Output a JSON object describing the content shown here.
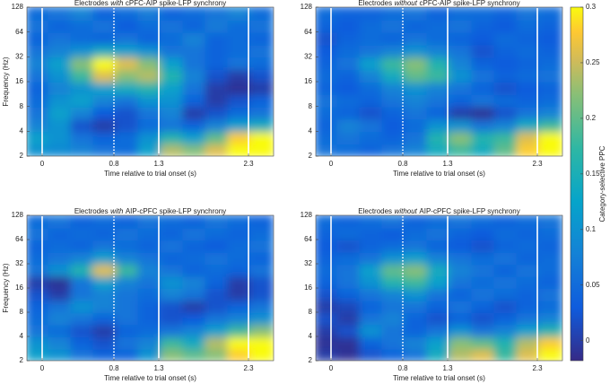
{
  "chart_data": [
    {
      "type": "heatmap",
      "title": {
        "prefix": "Electrodes",
        "emphasis": "with",
        "suffix": "cPFC-AIP spike-LFP synchrony"
      },
      "xlabel": "Time relative to trial onset (s)",
      "ylabel": "Frequency (Hz)",
      "xlim": [
        -0.17,
        2.58
      ],
      "ylim": [
        2,
        128
      ],
      "log_y": true,
      "xticks": [
        0,
        0.8,
        1.3,
        2.3
      ],
      "yticks": [
        2,
        4,
        8,
        16,
        32,
        64,
        128
      ],
      "markers": [
        {
          "x": 0,
          "style": "solid"
        },
        {
          "x": 0.8,
          "style": "dotted"
        },
        {
          "x": 1.3,
          "style": "solid"
        },
        {
          "x": 2.3,
          "style": "solid"
        }
      ],
      "x": [
        -0.05,
        0.2,
        0.45,
        0.7,
        0.95,
        1.2,
        1.45,
        1.7,
        1.95,
        2.2,
        2.45
      ],
      "y": [
        2.38,
        3.36,
        4.76,
        6.73,
        9.51,
        13.45,
        19.03,
        26.9,
        38.05,
        53.8,
        76.1,
        107.6
      ],
      "values": [
        [
          0.1,
          0.09,
          0.08,
          0.06,
          0.05,
          0.12,
          0.24,
          0.22,
          0.26,
          0.3,
          0.3
        ],
        [
          0.12,
          0.1,
          0.06,
          0.04,
          0.05,
          0.1,
          0.16,
          0.12,
          0.2,
          0.28,
          0.3
        ],
        [
          0.08,
          0.1,
          0.02,
          0.0,
          0.02,
          0.05,
          0.06,
          0.04,
          0.08,
          0.12,
          0.14
        ],
        [
          0.06,
          0.12,
          0.08,
          0.03,
          0.02,
          0.06,
          0.08,
          0.0,
          0.02,
          0.05,
          0.06
        ],
        [
          0.05,
          0.1,
          0.12,
          0.08,
          0.06,
          0.1,
          0.1,
          0.04,
          0.0,
          0.02,
          0.04
        ],
        [
          0.04,
          0.08,
          0.1,
          0.12,
          0.14,
          0.16,
          0.12,
          0.06,
          0.0,
          -0.01,
          0.0
        ],
        [
          0.06,
          0.1,
          0.18,
          0.26,
          0.22,
          0.24,
          0.16,
          0.08,
          0.02,
          0.0,
          0.02
        ],
        [
          0.08,
          0.12,
          0.22,
          0.3,
          0.26,
          0.22,
          0.12,
          0.06,
          0.04,
          0.06,
          0.05
        ],
        [
          0.06,
          0.08,
          0.1,
          0.14,
          0.12,
          0.1,
          0.06,
          0.06,
          0.04,
          0.05,
          0.06
        ],
        [
          0.04,
          0.06,
          0.05,
          0.04,
          0.06,
          0.04,
          0.05,
          0.08,
          0.04,
          0.05,
          0.04
        ],
        [
          0.06,
          0.04,
          0.05,
          0.06,
          0.03,
          0.05,
          0.06,
          0.04,
          0.07,
          0.05,
          0.06
        ],
        [
          0.05,
          0.06,
          0.08,
          0.04,
          0.05,
          0.07,
          0.04,
          0.05,
          0.06,
          0.08,
          0.05
        ]
      ]
    },
    {
      "type": "heatmap",
      "title": {
        "prefix": "Electrodes",
        "emphasis": "without",
        "suffix": "cPFC-AIP spike-LFP synchrony"
      },
      "xlabel": "Time relative to trial onset (s)",
      "xlim": [
        -0.17,
        2.58
      ],
      "ylim": [
        2,
        128
      ],
      "log_y": true,
      "xticks": [
        0,
        0.8,
        1.3,
        2.3
      ],
      "yticks": [
        2,
        4,
        8,
        16,
        32,
        64,
        128
      ],
      "markers": [
        {
          "x": 0,
          "style": "solid"
        },
        {
          "x": 0.8,
          "style": "dotted"
        },
        {
          "x": 1.3,
          "style": "solid"
        },
        {
          "x": 2.3,
          "style": "solid"
        }
      ],
      "x": [
        -0.05,
        0.2,
        0.45,
        0.7,
        0.95,
        1.2,
        1.45,
        1.7,
        1.95,
        2.2,
        2.45
      ],
      "y": [
        2.38,
        3.36,
        4.76,
        6.73,
        9.51,
        13.45,
        19.03,
        26.9,
        38.05,
        53.8,
        76.1,
        107.6
      ],
      "values": [
        [
          0.06,
          0.05,
          0.04,
          0.06,
          0.08,
          0.14,
          0.18,
          0.14,
          0.2,
          0.28,
          0.3
        ],
        [
          0.05,
          0.06,
          0.05,
          0.04,
          0.06,
          0.16,
          0.22,
          0.16,
          0.18,
          0.26,
          0.3
        ],
        [
          0.04,
          0.08,
          0.06,
          0.03,
          0.05,
          0.1,
          0.1,
          0.06,
          0.08,
          0.14,
          0.18
        ],
        [
          0.05,
          0.04,
          0.02,
          0.04,
          0.06,
          0.04,
          0.0,
          -0.01,
          0.02,
          0.06,
          0.08
        ],
        [
          0.06,
          0.05,
          0.04,
          0.06,
          0.08,
          0.06,
          0.04,
          0.06,
          0.05,
          0.04,
          0.05
        ],
        [
          0.04,
          0.03,
          0.05,
          0.08,
          0.1,
          0.08,
          0.06,
          0.04,
          0.02,
          0.03,
          0.04
        ],
        [
          0.05,
          0.04,
          0.08,
          0.14,
          0.2,
          0.18,
          0.1,
          0.06,
          0.04,
          0.05,
          0.06
        ],
        [
          0.04,
          0.06,
          0.12,
          0.18,
          0.22,
          0.16,
          0.08,
          0.04,
          0.03,
          0.04,
          0.05
        ],
        [
          0.03,
          0.05,
          0.06,
          0.08,
          0.1,
          0.08,
          0.06,
          0.02,
          0.04,
          0.05,
          0.04
        ],
        [
          0.02,
          0.04,
          0.05,
          0.04,
          0.06,
          0.05,
          0.04,
          0.03,
          0.05,
          0.04,
          0.03
        ],
        [
          0.04,
          0.03,
          0.05,
          0.06,
          0.04,
          0.05,
          0.06,
          0.04,
          0.03,
          0.05,
          0.04
        ],
        [
          0.05,
          0.04,
          0.04,
          0.05,
          0.06,
          0.04,
          0.05,
          0.05,
          0.04,
          0.06,
          0.05
        ]
      ]
    },
    {
      "type": "heatmap",
      "title": {
        "prefix": "Electrodes",
        "emphasis": "with",
        "suffix": "AIP-cPFC spike-LFP synchrony"
      },
      "xlabel": "Time relative to trial onset (s)",
      "ylabel": "Frequency (Hz)",
      "xlim": [
        -0.17,
        2.58
      ],
      "ylim": [
        2,
        128
      ],
      "log_y": true,
      "xticks": [
        0,
        0.8,
        1.3,
        2.3
      ],
      "yticks": [
        2,
        4,
        8,
        16,
        32,
        64,
        128
      ],
      "markers": [
        {
          "x": 0,
          "style": "solid"
        },
        {
          "x": 0.8,
          "style": "dotted"
        },
        {
          "x": 1.3,
          "style": "solid"
        },
        {
          "x": 2.3,
          "style": "solid"
        }
      ],
      "x": [
        -0.05,
        0.2,
        0.45,
        0.7,
        0.95,
        1.2,
        1.45,
        1.7,
        1.95,
        2.2,
        2.45
      ],
      "y": [
        2.38,
        3.36,
        4.76,
        6.73,
        9.51,
        13.45,
        19.03,
        26.9,
        38.05,
        53.8,
        76.1,
        107.6
      ],
      "values": [
        [
          0.12,
          0.1,
          0.06,
          0.04,
          0.04,
          0.1,
          0.22,
          0.2,
          0.22,
          0.28,
          0.3
        ],
        [
          0.1,
          0.08,
          0.04,
          0.02,
          0.06,
          0.08,
          0.18,
          0.14,
          0.24,
          0.3,
          0.3
        ],
        [
          0.06,
          0.05,
          0.02,
          0.0,
          0.04,
          0.05,
          0.06,
          0.08,
          0.12,
          0.18,
          0.22
        ],
        [
          0.05,
          0.08,
          0.06,
          0.04,
          0.06,
          0.04,
          0.02,
          0.03,
          0.06,
          0.08,
          0.1
        ],
        [
          0.04,
          0.06,
          0.1,
          0.08,
          0.06,
          0.04,
          0.02,
          0.0,
          0.02,
          0.04,
          0.06
        ],
        [
          0.02,
          0.0,
          0.06,
          0.08,
          0.06,
          0.05,
          0.08,
          0.06,
          0.02,
          0.0,
          0.02
        ],
        [
          0.0,
          -0.01,
          0.06,
          0.12,
          0.08,
          0.06,
          0.1,
          0.08,
          0.04,
          0.0,
          0.02
        ],
        [
          0.06,
          0.1,
          0.16,
          0.26,
          0.18,
          0.08,
          0.06,
          0.04,
          0.05,
          0.04,
          0.06
        ],
        [
          0.05,
          0.06,
          0.08,
          0.12,
          0.08,
          0.06,
          0.04,
          0.05,
          0.06,
          0.05,
          0.04
        ],
        [
          0.04,
          0.05,
          0.04,
          0.06,
          0.05,
          0.04,
          0.06,
          0.04,
          0.03,
          0.05,
          0.06
        ],
        [
          0.06,
          0.04,
          0.05,
          0.04,
          0.06,
          0.05,
          0.04,
          0.06,
          0.05,
          0.04,
          0.05
        ],
        [
          0.05,
          0.06,
          0.04,
          0.05,
          0.04,
          0.06,
          0.05,
          0.04,
          0.06,
          0.05,
          0.04
        ]
      ]
    },
    {
      "type": "heatmap",
      "title": {
        "prefix": "Electrodes",
        "emphasis": "without",
        "suffix": "AIP-cPFC spike-LFP synchrony"
      },
      "xlabel": "Time relative to trial onset (s)",
      "xlim": [
        -0.17,
        2.58
      ],
      "ylim": [
        2,
        128
      ],
      "log_y": true,
      "xticks": [
        0,
        0.8,
        1.3,
        2.3
      ],
      "yticks": [
        2,
        4,
        8,
        16,
        32,
        64,
        128
      ],
      "markers": [
        {
          "x": 0,
          "style": "solid"
        },
        {
          "x": 0.8,
          "style": "dotted"
        },
        {
          "x": 1.3,
          "style": "solid"
        },
        {
          "x": 2.3,
          "style": "solid"
        }
      ],
      "x": [
        -0.05,
        0.2,
        0.45,
        0.7,
        0.95,
        1.2,
        1.45,
        1.7,
        1.95,
        2.2,
        2.45
      ],
      "y": [
        2.38,
        3.36,
        4.76,
        6.73,
        9.51,
        13.45,
        19.03,
        26.9,
        38.05,
        53.8,
        76.1,
        107.6
      ],
      "values": [
        [
          0.0,
          -0.01,
          0.02,
          0.04,
          0.06,
          0.14,
          0.24,
          0.26,
          0.18,
          0.26,
          0.3
        ],
        [
          -0.01,
          -0.01,
          0.04,
          0.06,
          0.08,
          0.12,
          0.22,
          0.2,
          0.16,
          0.24,
          0.28
        ],
        [
          0.0,
          0.02,
          0.1,
          0.06,
          0.04,
          0.06,
          0.1,
          0.06,
          0.08,
          0.12,
          0.16
        ],
        [
          0.02,
          0.0,
          0.06,
          0.08,
          0.04,
          0.02,
          0.04,
          0.02,
          0.04,
          0.06,
          0.08
        ],
        [
          0.0,
          0.01,
          0.04,
          0.06,
          0.06,
          0.04,
          0.06,
          0.04,
          0.02,
          0.04,
          0.05
        ],
        [
          0.02,
          0.04,
          0.06,
          0.08,
          0.1,
          0.06,
          0.04,
          0.06,
          0.05,
          0.04,
          0.06
        ],
        [
          0.04,
          0.06,
          0.1,
          0.16,
          0.18,
          0.12,
          0.06,
          0.05,
          0.06,
          0.05,
          0.04
        ],
        [
          0.05,
          0.06,
          0.12,
          0.2,
          0.22,
          0.14,
          0.08,
          0.06,
          0.04,
          0.06,
          0.05
        ],
        [
          0.04,
          0.05,
          0.06,
          0.1,
          0.12,
          0.08,
          0.06,
          0.05,
          0.06,
          0.04,
          0.05
        ],
        [
          0.03,
          0.02,
          0.04,
          0.05,
          0.06,
          0.04,
          0.03,
          0.02,
          0.04,
          0.05,
          0.04
        ],
        [
          0.04,
          0.05,
          0.04,
          0.03,
          0.05,
          0.06,
          0.04,
          0.03,
          0.05,
          0.04,
          0.05
        ],
        [
          0.05,
          0.04,
          0.05,
          0.06,
          0.04,
          0.05,
          0.06,
          0.05,
          0.04,
          0.05,
          0.06
        ]
      ]
    }
  ],
  "colorbar": {
    "label": "Category-selective PPC",
    "colormap": "parula",
    "clim": [
      -0.018,
      0.3
    ],
    "ticks": [
      0,
      0.05,
      0.1,
      0.15,
      0.2,
      0.25,
      0.3
    ]
  }
}
